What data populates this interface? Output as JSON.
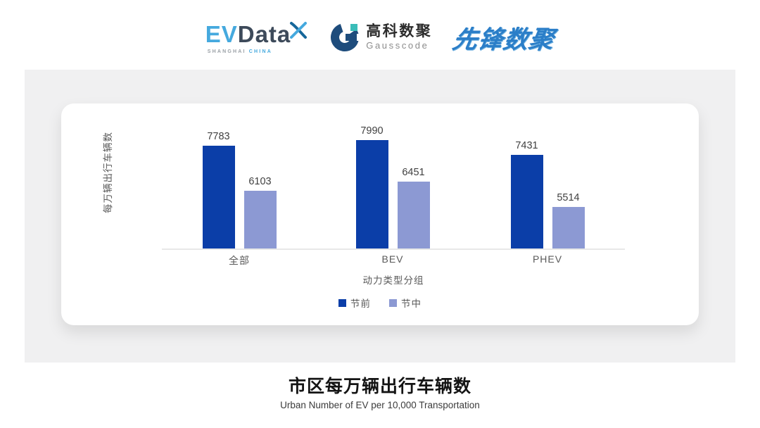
{
  "header": {
    "evdata_logo": {
      "ev": "EV",
      "data": "Data",
      "subtitle_left": "SHANGHAI",
      "subtitle_right": "CHINA",
      "ev_color": "#45A9DE",
      "data_color": "#3D4A5A"
    },
    "gausscode_logo": {
      "cn": "高科数聚",
      "en": "Gausscode",
      "mark_navy": "#1E4C7C",
      "mark_teal": "#3ABCB8"
    },
    "xianfeng_logo": {
      "text": "先锋数聚",
      "color": "#2B7EC8"
    }
  },
  "chart_data": {
    "type": "bar",
    "categories": [
      "全部",
      "BEV",
      "PHEV"
    ],
    "series": [
      {
        "name": "节前",
        "color": "#0B3EA8",
        "values": [
          7783,
          7990,
          7431
        ]
      },
      {
        "name": "节中",
        "color": "#8C99D3",
        "values": [
          6103,
          6451,
          5514
        ]
      }
    ],
    "ylabel": "每万辆出行车辆数",
    "xlabel": "动力类型分组",
    "ylim": [
      3975,
      8400
    ],
    "baseline_value": 3975,
    "grid": false,
    "legend_position": "bottom",
    "axis_color": "#E8E8E8"
  },
  "footer": {
    "title": "市区每万辆出行车辆数",
    "subtitle": "Urban Number of EV per 10,000 Transportation"
  }
}
